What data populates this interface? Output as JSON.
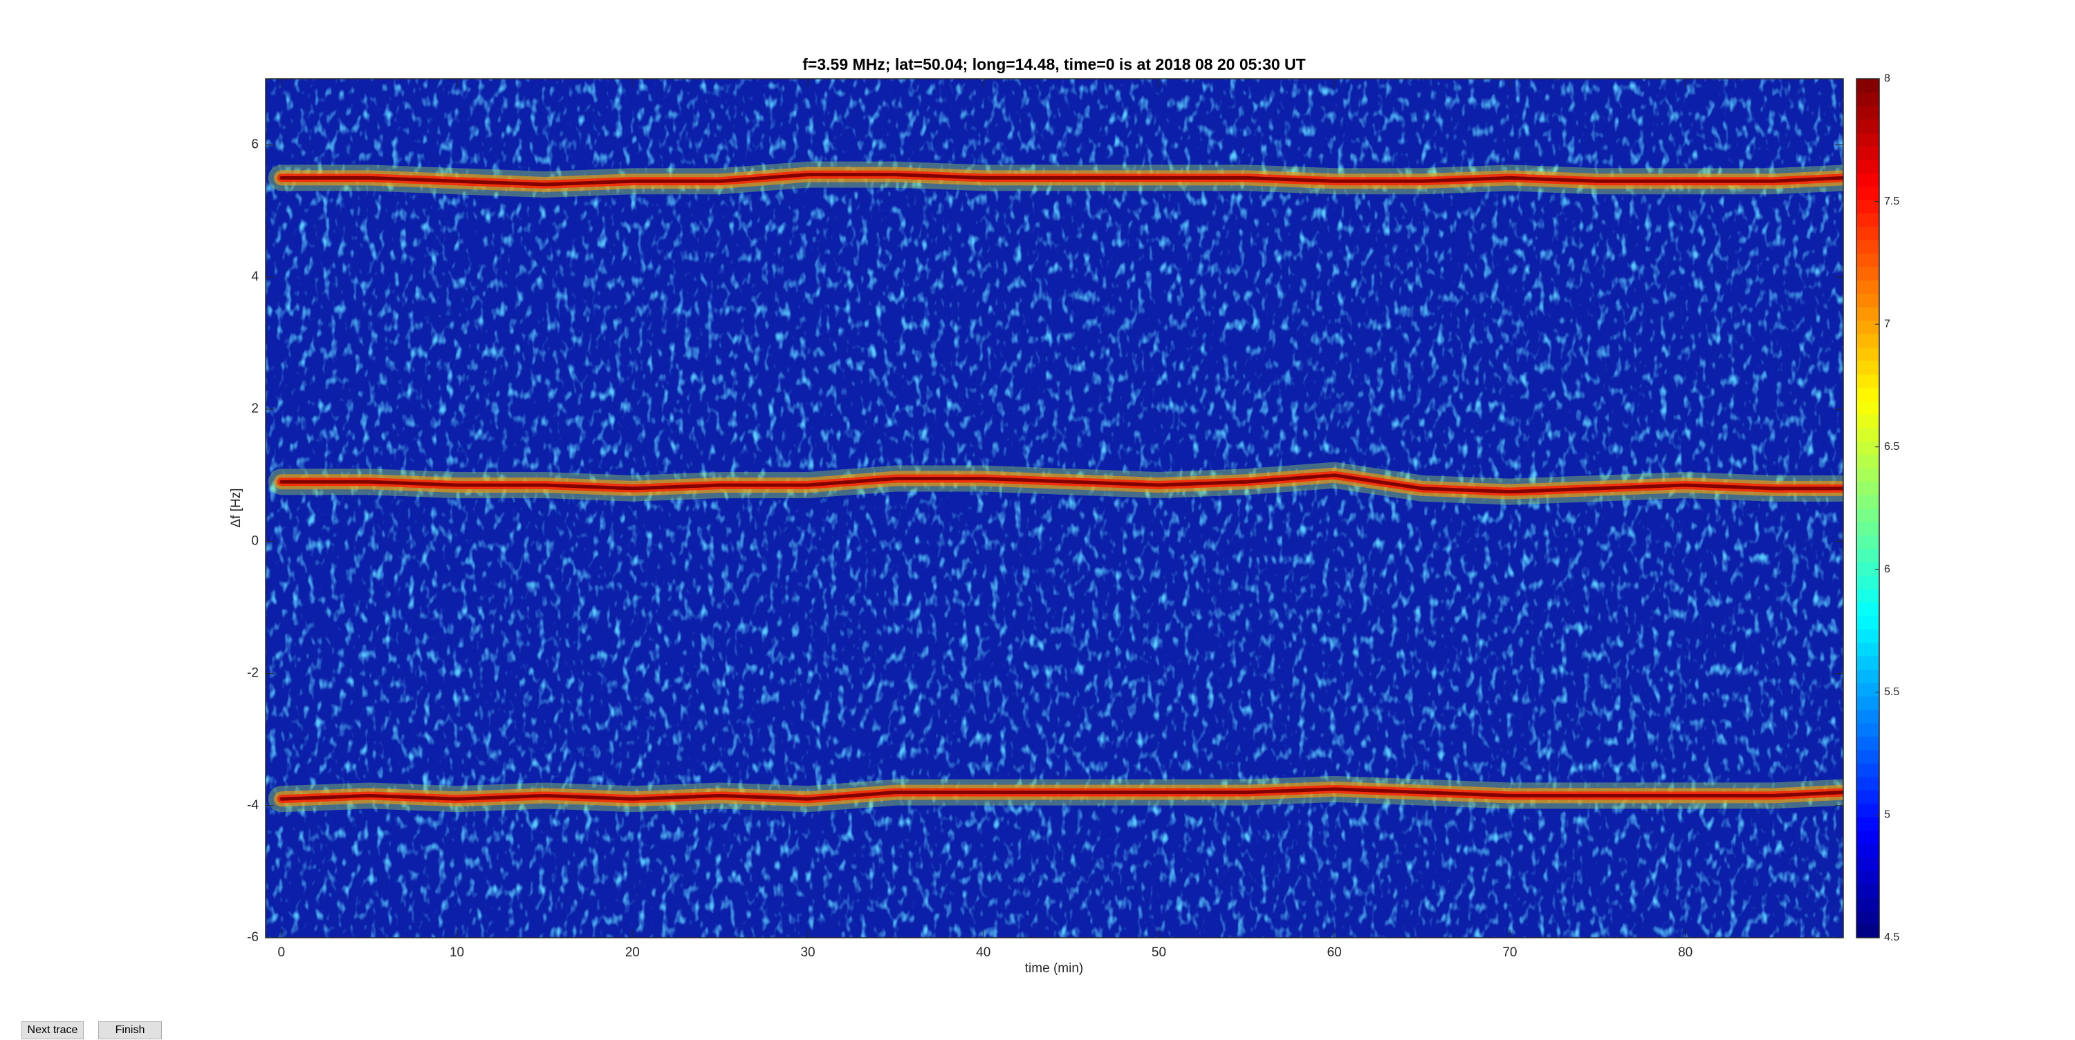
{
  "chart_data": {
    "type": "heatmap",
    "title": "f=3.59 MHz;  lat=50.04; long=14.48, time=0 is at 2018 08 20 05:30 UT",
    "xlabel": "time (min)",
    "ylabel": "Δf [Hz]",
    "xlim": [
      -0.9,
      89
    ],
    "xticks": [
      0,
      10,
      20,
      30,
      40,
      50,
      60,
      70,
      80
    ],
    "ylim": [
      -6,
      7
    ],
    "yticks": [
      -6,
      -4,
      -2,
      0,
      2,
      4,
      6
    ],
    "colormap": "jet",
    "clim": [
      4.5,
      8
    ],
    "cticks": [
      4.5,
      5,
      5.5,
      6,
      6.5,
      7,
      7.5,
      8
    ],
    "x": [
      0,
      5,
      10,
      15,
      20,
      25,
      30,
      35,
      40,
      45,
      50,
      55,
      60,
      65,
      70,
      75,
      80,
      85,
      89
    ],
    "series": [
      {
        "values": [
          5.5,
          5.5,
          5.45,
          5.4,
          5.45,
          5.45,
          5.55,
          5.55,
          5.5,
          5.5,
          5.5,
          5.5,
          5.45,
          5.45,
          5.5,
          5.45,
          5.45,
          5.45,
          5.5
        ]
      },
      {
        "values": [
          0.9,
          0.9,
          0.85,
          0.85,
          0.8,
          0.85,
          0.85,
          0.95,
          0.95,
          0.9,
          0.85,
          0.9,
          1.0,
          0.8,
          0.75,
          0.8,
          0.85,
          0.8,
          0.8
        ]
      },
      {
        "values": [
          -3.9,
          -3.85,
          -3.9,
          -3.85,
          -3.9,
          -3.85,
          -3.9,
          -3.8,
          -3.8,
          -3.8,
          -3.8,
          -3.8,
          -3.75,
          -3.8,
          -3.85,
          -3.85,
          -3.85,
          -3.85,
          -3.8
        ]
      }
    ]
  },
  "buttons": [
    "Next trace",
    "Finish"
  ]
}
